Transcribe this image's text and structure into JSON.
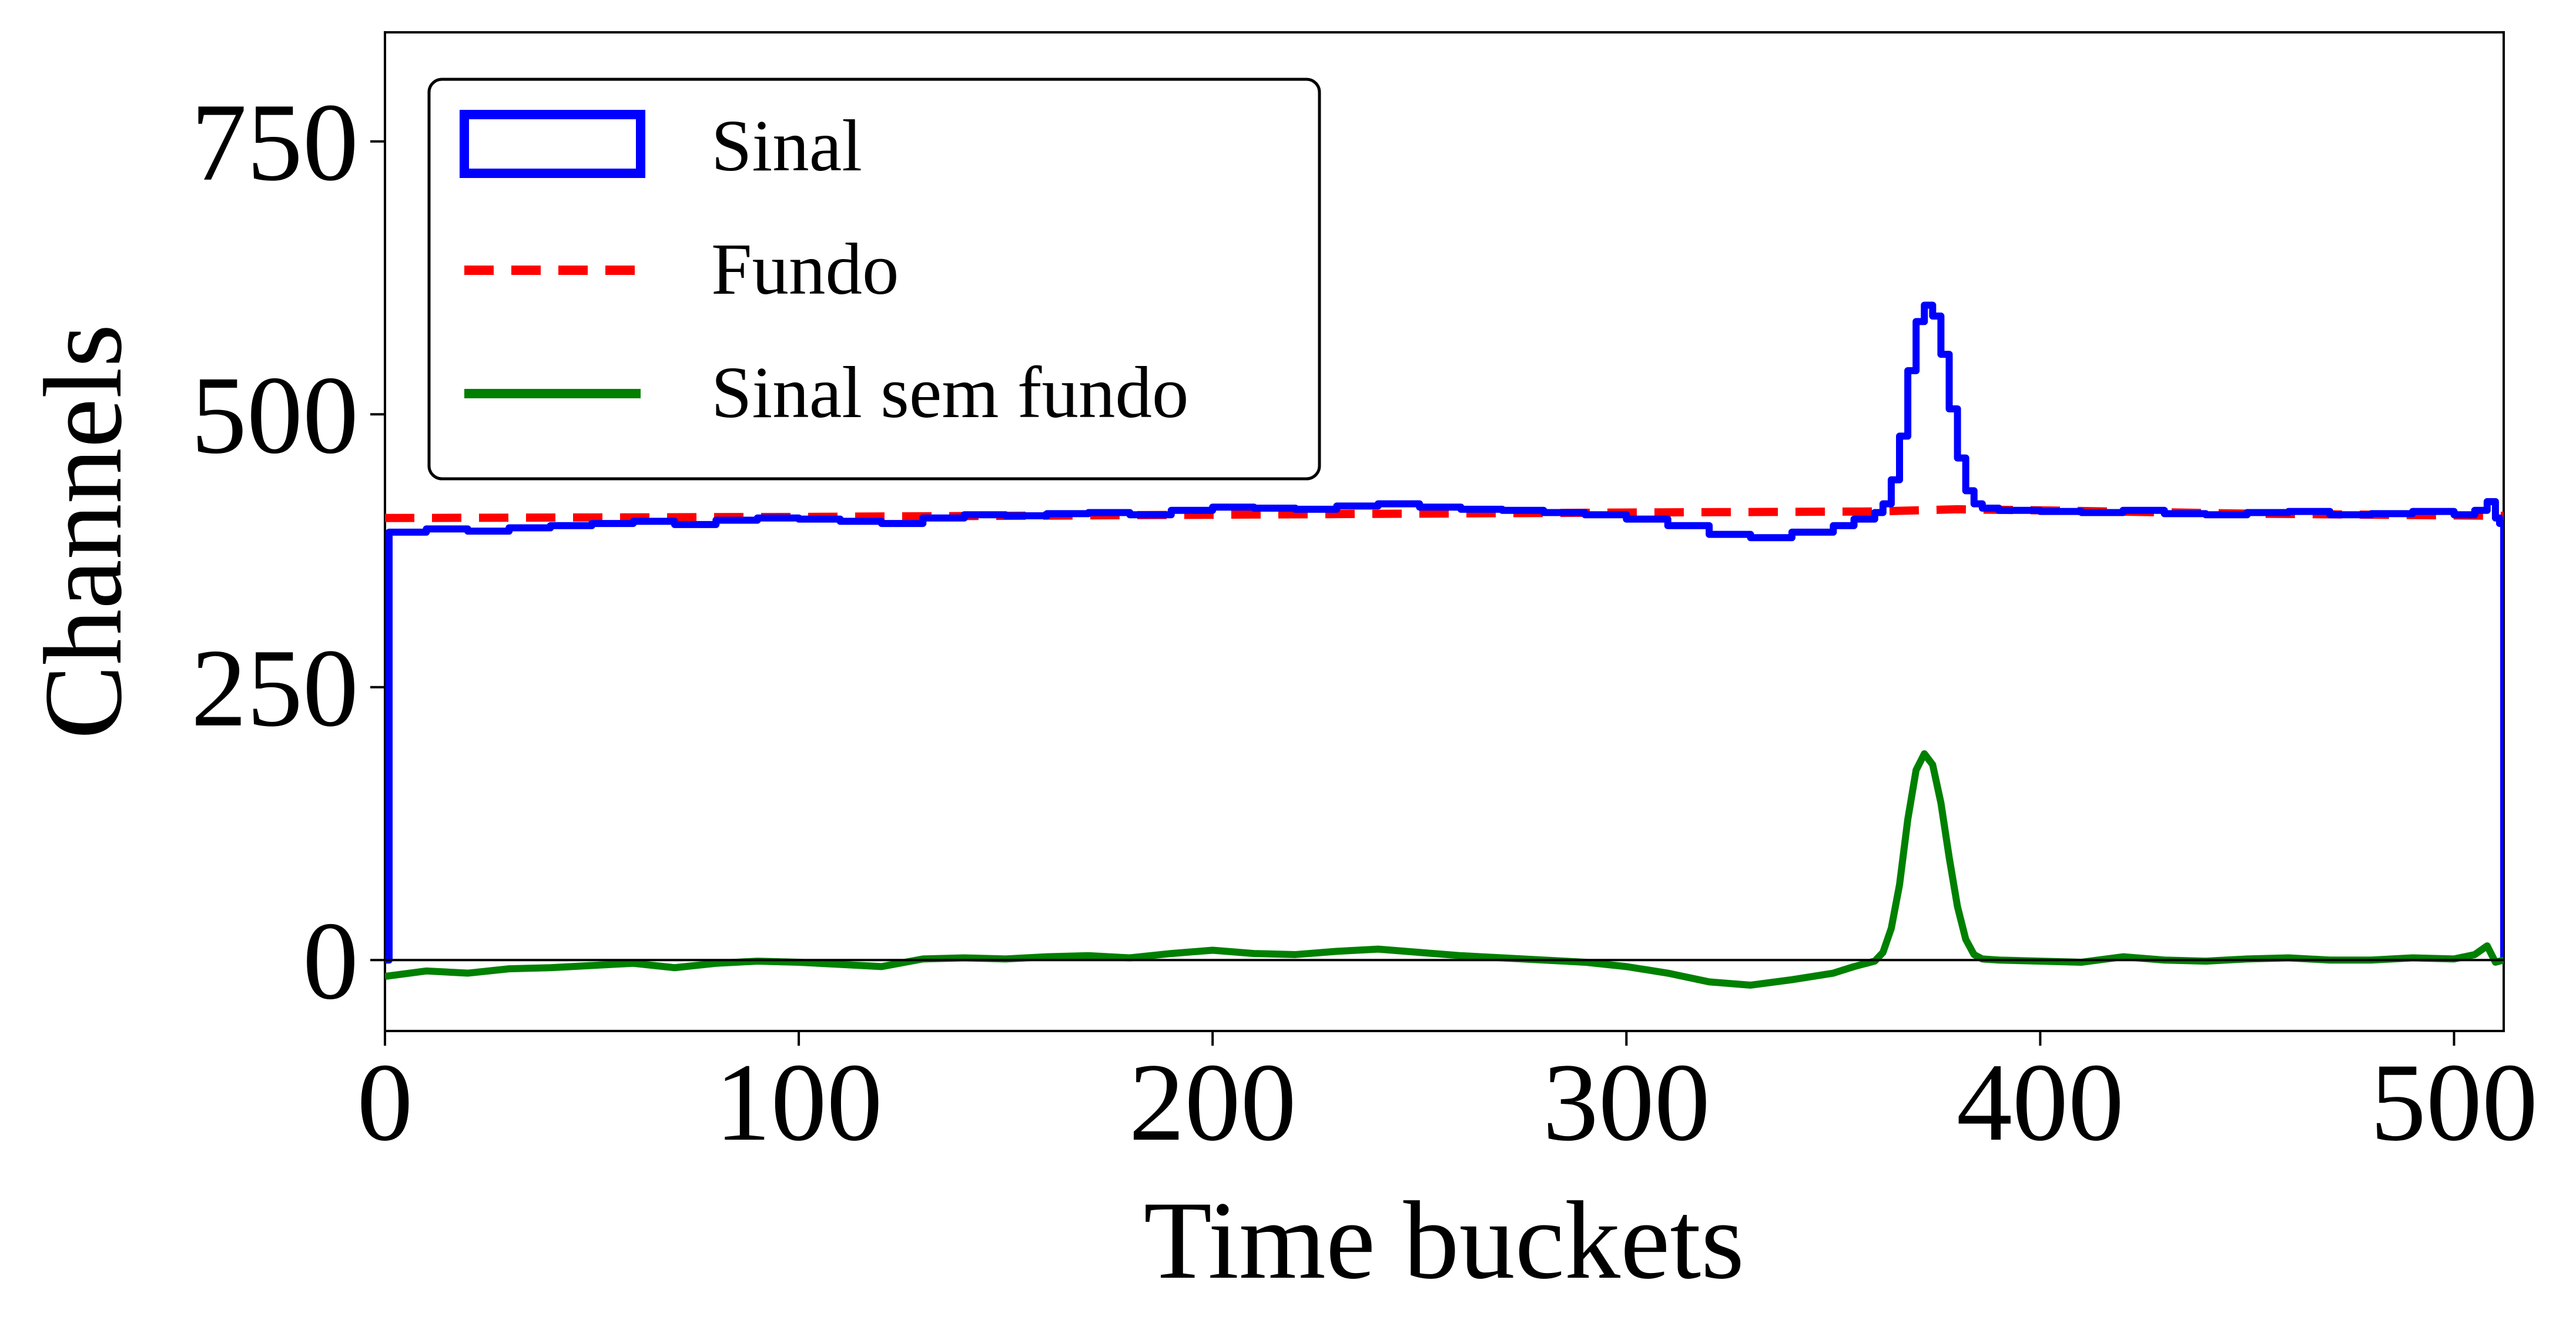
{
  "chart_data": {
    "type": "line",
    "xlabel": "Time buckets",
    "ylabel": "Channels",
    "xlim": [
      0,
      512
    ],
    "ylim": [
      -65,
      850
    ],
    "xticks": [
      0,
      100,
      200,
      300,
      400,
      500
    ],
    "yticks": [
      0,
      250,
      500,
      750
    ],
    "grid": false,
    "legend_position": "top-left",
    "zero_line": 0,
    "colors": {
      "sinal": "#0000ff",
      "fundo": "#ff0000",
      "sinal_sem_fundo": "#008000",
      "axis": "#000000"
    },
    "series": [
      {
        "name": "Sinal",
        "style": "step",
        "color": "#0000ff",
        "x": [
          0,
          1,
          10,
          20,
          30,
          40,
          50,
          60,
          70,
          80,
          90,
          100,
          110,
          120,
          130,
          140,
          150,
          160,
          170,
          180,
          190,
          200,
          210,
          220,
          230,
          240,
          250,
          260,
          270,
          280,
          290,
          300,
          310,
          320,
          330,
          340,
          350,
          355,
          360,
          362,
          364,
          366,
          368,
          370,
          372,
          374,
          376,
          378,
          380,
          382,
          384,
          386,
          390,
          400,
          410,
          420,
          430,
          440,
          450,
          460,
          470,
          480,
          490,
          500,
          505,
          508,
          510,
          511,
          512
        ],
        "y": [
          0,
          392,
          395,
          393,
          396,
          398,
          400,
          402,
          399,
          403,
          405,
          404,
          402,
          400,
          405,
          408,
          407,
          409,
          410,
          408,
          412,
          415,
          414,
          413,
          416,
          418,
          415,
          413,
          412,
          410,
          408,
          404,
          398,
          390,
          387,
          392,
          398,
          404,
          410,
          418,
          440,
          480,
          540,
          585,
          600,
          590,
          555,
          505,
          460,
          430,
          418,
          414,
          412,
          411,
          410,
          412,
          409,
          408,
          410,
          411,
          408,
          409,
          411,
          408,
          412,
          420,
          405,
          400,
          0
        ]
      },
      {
        "name": "Fundo",
        "style": "dashed",
        "color": "#ff0000",
        "x": [
          0,
          100,
          200,
          300,
          360,
          380,
          400,
          450,
          512
        ],
        "y": [
          405,
          406,
          408,
          410,
          411,
          413,
          412,
          409,
          407
        ]
      },
      {
        "name": "Sinal sem fundo",
        "style": "line",
        "color": "#008000",
        "x": [
          0,
          10,
          20,
          30,
          40,
          50,
          60,
          70,
          80,
          90,
          100,
          110,
          120,
          130,
          140,
          150,
          160,
          170,
          180,
          190,
          200,
          210,
          220,
          230,
          240,
          250,
          260,
          270,
          280,
          290,
          300,
          310,
          320,
          330,
          340,
          350,
          355,
          360,
          362,
          364,
          366,
          368,
          370,
          372,
          374,
          376,
          378,
          380,
          382,
          384,
          386,
          390,
          400,
          410,
          420,
          430,
          440,
          450,
          460,
          470,
          480,
          490,
          500,
          505,
          508,
          510,
          512
        ],
        "y": [
          -15,
          -10,
          -12,
          -8,
          -7,
          -5,
          -3,
          -7,
          -3,
          -1,
          -2,
          -4,
          -6,
          1,
          2,
          1,
          3,
          4,
          2,
          6,
          9,
          6,
          5,
          8,
          10,
          7,
          4,
          2,
          0,
          -2,
          -6,
          -12,
          -20,
          -23,
          -18,
          -12,
          -6,
          -1,
          7,
          29,
          69,
          129,
          174,
          189,
          179,
          144,
          94,
          49,
          19,
          5,
          1,
          0,
          -1,
          -2,
          3,
          0,
          -1,
          1,
          2,
          0,
          0,
          2,
          1,
          5,
          13,
          -2,
          0
        ]
      }
    ]
  }
}
